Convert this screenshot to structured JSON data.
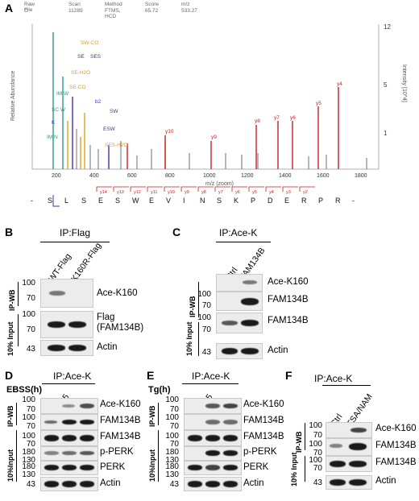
{
  "panel_A": {
    "label": "A",
    "header": {
      "cols": [
        "Raw File",
        "Scan",
        "Method",
        "Score",
        "m/z"
      ],
      "vals": [
        "C",
        "11289",
        "FTMS, HCD",
        "65.72",
        "533.27"
      ]
    },
    "y_axis_label": "Relative Abundance",
    "y_axis_right_label": "Intensity [10^4]",
    "y_ticks_right": [
      "12",
      "5",
      "1"
    ],
    "x_axis_label": "m/z (zoom)",
    "x_ticks": [
      "200",
      "400",
      "600",
      "800",
      "1000",
      "1200",
      "1400",
      "1600",
      "1800"
    ],
    "fragment_labels": [
      "SW-CO",
      "SE",
      "SES",
      "SE-H2O",
      "SE-CO",
      "IM W",
      "b2",
      "SC W",
      "SW",
      "K",
      "ESW",
      "SES-H2O",
      "IM N",
      "y4",
      "y5",
      "y6",
      "y7",
      "y8",
      "y9",
      "y10"
    ],
    "sequence": [
      "-",
      "S",
      "L",
      "S",
      "E",
      "S",
      "W",
      "E",
      "V",
      "I",
      "N",
      "S",
      "K",
      "P",
      "D",
      "E",
      "R",
      "P",
      "R",
      "-"
    ],
    "y_ion_labels": [
      "y14",
      "y13",
      "y12",
      "y11",
      "y10",
      "y9",
      "y8",
      "y7",
      "y6",
      "y5",
      "y4",
      "y3",
      "y2"
    ],
    "colors": {
      "y_ion": "#c81e1e",
      "b_ion": "#4a2bb5",
      "internal": "#e0a020",
      "immonium": "#2a9a8a"
    }
  },
  "panel_B": {
    "label": "B",
    "ip": "IP:Flag",
    "lanes": [
      "WT-Flag",
      "K160R-Flag"
    ],
    "side_ipwb": "IP-WB",
    "side_input": "10% Input",
    "rows": [
      {
        "label": "Ace-K160",
        "mw": [
          "100",
          "70"
        ]
      },
      {
        "label": "Flag\n(FAM134B)",
        "mw": [
          "100",
          "70"
        ]
      },
      {
        "label": "Actin",
        "mw": [
          "43"
        ]
      }
    ]
  },
  "panel_C": {
    "label": "C",
    "ip": "IP:Ace-K",
    "lanes": [
      "Ctrl",
      "FAM134B"
    ],
    "side_ipwb": "IP-WB",
    "side_input": "10% Input",
    "rows": [
      {
        "label": "Ace-K160",
        "mw": []
      },
      {
        "label": "FAM134B",
        "mw": [
          "100",
          "70"
        ]
      },
      {
        "label": "FAM134B",
        "mw": [
          "100",
          "70"
        ]
      },
      {
        "label": "Actin",
        "mw": [
          "43"
        ]
      }
    ]
  },
  "panel_D": {
    "label": "D",
    "ip": "IP:Ace-K",
    "treatment": "EBSS(h)",
    "lanes": [
      "0",
      "0.5",
      "1"
    ],
    "side_ipwb": "IP-WB",
    "side_input": "10%Input",
    "rows": [
      {
        "label": "Ace-K160",
        "mw": [
          "100",
          "70"
        ]
      },
      {
        "label": "FAM134B",
        "mw": [
          "100",
          "70"
        ]
      },
      {
        "label": "FAM134B",
        "mw": [
          "100",
          "70"
        ]
      },
      {
        "label": "p-PERK",
        "mw": [
          "180",
          "130"
        ]
      },
      {
        "label": "PERK",
        "mw": [
          "180",
          "130"
        ]
      },
      {
        "label": "Actin",
        "mw": [
          "43"
        ]
      }
    ]
  },
  "panel_E": {
    "label": "E",
    "ip": "IP:Ace-K",
    "treatment": "Tg(h)",
    "lanes": [
      "0",
      "0.5",
      "1"
    ],
    "side_ipwb": "IP-WB",
    "side_input": "10%Input",
    "rows": [
      {
        "label": "Ace-K160",
        "mw": [
          "100",
          "70"
        ]
      },
      {
        "label": "FAM134B",
        "mw": [
          "100",
          "70"
        ]
      },
      {
        "label": "FAM134B",
        "mw": [
          "100",
          "70"
        ]
      },
      {
        "label": "p-PERK",
        "mw": [
          "180",
          "130"
        ]
      },
      {
        "label": "PERK",
        "mw": [
          "180",
          "130"
        ]
      },
      {
        "label": "Actin",
        "mw": [
          "43"
        ]
      }
    ]
  },
  "panel_F": {
    "label": "F",
    "ip": "IP:Ace-K",
    "lanes": [
      "Ctrl",
      "TSA/NAM"
    ],
    "side_ipwb": "IP-WB",
    "side_input": "10% Input",
    "rows": [
      {
        "label": "Ace-K160",
        "mw": [
          "100",
          "70"
        ]
      },
      {
        "label": "FAM134B",
        "mw": [
          "100",
          "70"
        ]
      },
      {
        "label": "FAM134B",
        "mw": [
          "100",
          "70"
        ]
      },
      {
        "label": "Actin",
        "mw": [
          "43"
        ]
      }
    ]
  }
}
